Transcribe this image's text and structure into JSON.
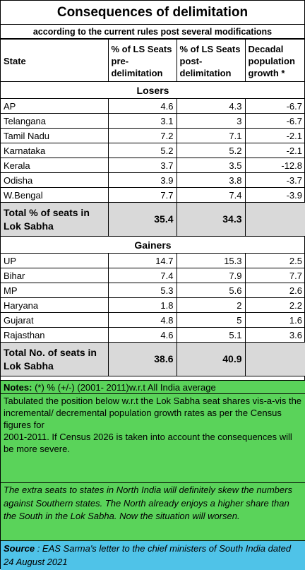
{
  "title": "Consequences of delimitation",
  "subtitle": "according to the current rules post several modifications",
  "headers": {
    "state": "State",
    "pre": "% of LS Seats pre-delimitation",
    "post": "% of LS Seats post-delimitation",
    "growth": "Decadal population growth *"
  },
  "losers": {
    "label": "Losers",
    "rows": [
      {
        "state": "AP",
        "pre": "4.6",
        "post": "4.3",
        "growth": "-6.7"
      },
      {
        "state": "Telangana",
        "pre": "3.1",
        "post": "3",
        "growth": "-6.7"
      },
      {
        "state": "Tamil Nadu",
        "pre": "7.2",
        "post": "7.1",
        "growth": "-2.1"
      },
      {
        "state": "Karnataka",
        "pre": "5.2",
        "post": "5.2",
        "growth": "-2.1"
      },
      {
        "state": "Kerala",
        "pre": "3.7",
        "post": "3.5",
        "growth": "-12.8"
      },
      {
        "state": "Odisha",
        "pre": "3.9",
        "post": "3.8",
        "growth": "-3.7"
      },
      {
        "state": "W.Bengal",
        "pre": "7.7",
        "post": "7.4",
        "growth": "-3.9"
      }
    ],
    "total": {
      "label": "Total % of seats in Lok Sabha",
      "pre": "35.4",
      "post": "34.3"
    }
  },
  "gainers": {
    "label": "Gainers",
    "rows": [
      {
        "state": "UP",
        "pre": "14.7",
        "post": "15.3",
        "growth": "2.5"
      },
      {
        "state": "Bihar",
        "pre": "7.4",
        "post": "7.9",
        "growth": "7.7"
      },
      {
        "state": "MP",
        "pre": "5.3",
        "post": "5.6",
        "growth": "2.6"
      },
      {
        "state": "Haryana",
        "pre": "1.8",
        "post": "2",
        "growth": "2.2"
      },
      {
        "state": "Gujarat",
        "pre": "4.8",
        "post": "5",
        "growth": "1.6"
      },
      {
        "state": "Rajasthan",
        "pre": "4.6",
        "post": "5.1",
        "growth": "3.6"
      }
    ],
    "total": {
      "label": "Total No. of seats in Lok Sabha",
      "pre": "38.6",
      "post": "40.9"
    }
  },
  "notes": {
    "label": "Notes:",
    "text": " (*)   % (+/-) (2001- 2011)w.r.t All India average"
  },
  "tabulated": {
    "line1": "Tabulated the position below w.r.t the Lok Sabha seat shares vis-a-vis the",
    "line2": "incremental/ decremental population growth rates as per the Census figures for",
    "line3": "2001-2011. If Census 2026 is taken into account the consequences will be more severe."
  },
  "extra_text": "The extra seats to states in North India will definitely skew the numbers against Southern states.  The North already enjoys a higher share than the South in the Lok Sabha.  Now the situation will worsen.",
  "source": {
    "label": "Source",
    "text": " : EAS Sarma's letter to the chief ministers of South India dated 24 August 2021"
  },
  "colors": {
    "notes_bg": "#5ad35a",
    "source_bg": "#4fc3e8",
    "total_bg": "#d9d9d9"
  }
}
